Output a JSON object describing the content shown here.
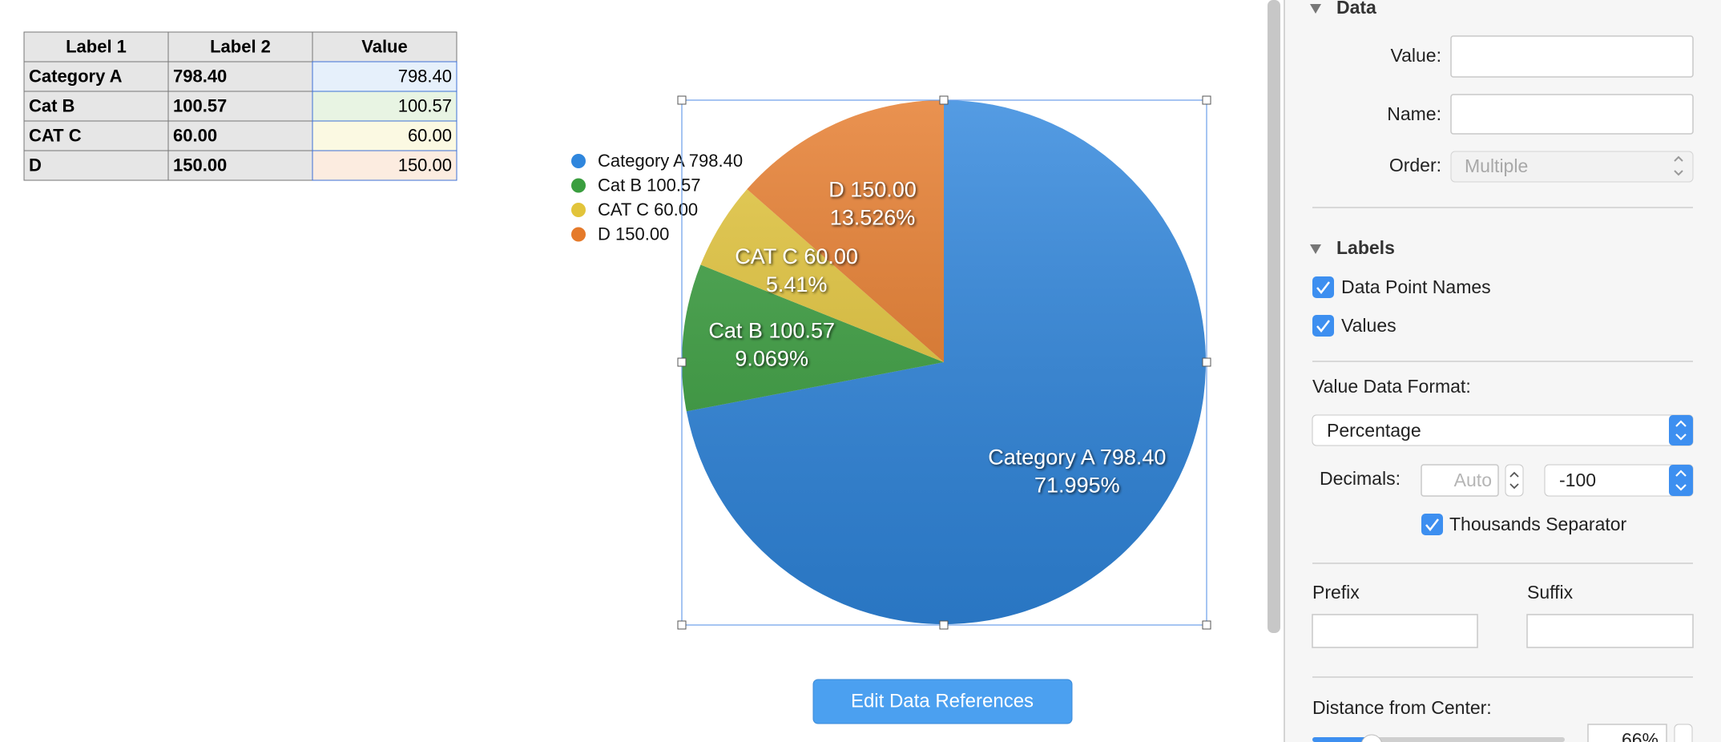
{
  "table": {
    "header": [
      "Label 1",
      "Label 2",
      "Value"
    ],
    "rows": [
      [
        "Category A",
        "798.40",
        "798.40"
      ],
      [
        "Cat B",
        "100.57",
        "100.57"
      ],
      [
        "CAT C",
        "60.00",
        "60.00"
      ],
      [
        "D",
        "150.00",
        "150.00"
      ]
    ]
  },
  "chart_data": {
    "type": "pie",
    "categories": [
      "Category A",
      "Cat B",
      "CAT C",
      "D"
    ],
    "values": [
      798.4,
      100.57,
      60,
      150
    ],
    "value_labels": [
      "798.40",
      "100.57",
      "60.00",
      "150.00"
    ],
    "percentage_labels": [
      "71.995%",
      "9.069%",
      "5.41%",
      "13.526%"
    ],
    "colors": [
      "#2f86dd",
      "#3a9e3f",
      "#e2c43a",
      "#e57a2a"
    ]
  },
  "button": "Edit Data References",
  "inspector": {
    "data_section": {
      "title": "Data",
      "value_label": "Value:",
      "name_label": "Name:",
      "order_label": "Order:",
      "order_value": "Multiple"
    },
    "labels_section": {
      "title": "Labels",
      "checkboxes": [
        "Data Point Names",
        "Values"
      ],
      "format_label": "Value Data Format:",
      "format_value": "Percentage",
      "decimals_label": "Decimals:",
      "decimals_placeholder": "Auto",
      "decimals_value": "-100",
      "thousands": "Thousands Separator",
      "prefix": "Prefix",
      "suffix": "Suffix",
      "distance_label": "Distance from Center:",
      "distance_value": "66%"
    }
  }
}
